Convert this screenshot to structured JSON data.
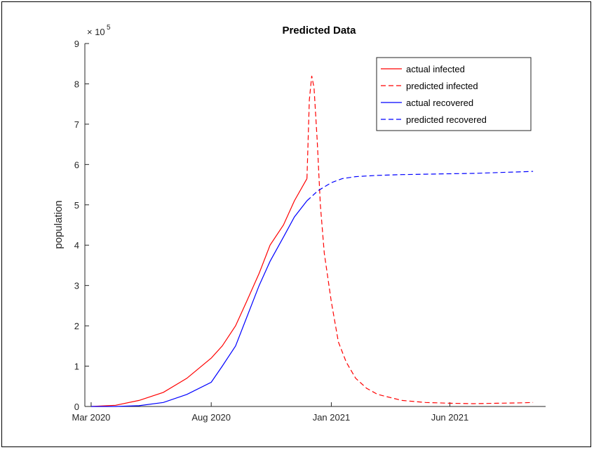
{
  "chart_data": {
    "type": "line",
    "title": "Predicted Data",
    "xlabel": "",
    "ylabel": "population",
    "y_exponent_label": "× 10",
    "y_exponent_power": "5",
    "ylim": [
      0,
      900000
    ],
    "y_ticks": [
      0,
      100000,
      200000,
      300000,
      400000,
      500000,
      600000,
      700000,
      800000,
      900000
    ],
    "y_tick_labels": [
      "0",
      "1",
      "2",
      "3",
      "4",
      "5",
      "6",
      "7",
      "8",
      "9"
    ],
    "xlim": [
      "2020-02-22",
      "2021-10-01"
    ],
    "x_ticks": [
      "2020-03-01",
      "2020-08-01",
      "2021-01-01",
      "2021-06-01"
    ],
    "x_tick_labels": [
      "Mar 2020",
      "Aug 2020",
      "Jan 2021",
      "Jun 2021"
    ],
    "legend_position": "top-right",
    "grid": false,
    "series": [
      {
        "name": "actual infected",
        "color": "#ff0000",
        "style": "solid",
        "x": [
          "2020-03-01",
          "2020-04-01",
          "2020-05-01",
          "2020-06-01",
          "2020-07-01",
          "2020-08-01",
          "2020-08-15",
          "2020-09-01",
          "2020-09-15",
          "2020-10-01",
          "2020-10-15",
          "2020-11-01",
          "2020-11-15",
          "2020-12-01"
        ],
        "y": [
          0,
          3000,
          15000,
          35000,
          70000,
          120000,
          150000,
          200000,
          260000,
          330000,
          400000,
          450000,
          510000,
          565000
        ]
      },
      {
        "name": "predicted infected",
        "color": "#ff0000",
        "style": "dashed",
        "x": [
          "2020-12-01",
          "2020-12-04",
          "2020-12-07",
          "2020-12-10",
          "2020-12-14",
          "2020-12-18",
          "2020-12-23",
          "2021-01-01",
          "2021-01-10",
          "2021-01-20",
          "2021-02-01",
          "2021-02-15",
          "2021-03-01",
          "2021-04-01",
          "2021-05-01",
          "2021-06-01",
          "2021-07-01",
          "2021-08-01",
          "2021-09-01",
          "2021-09-15"
        ],
        "y": [
          565000,
          760000,
          820000,
          790000,
          660000,
          500000,
          380000,
          260000,
          160000,
          110000,
          70000,
          45000,
          30000,
          15000,
          10000,
          8000,
          7000,
          8000,
          9000,
          10000
        ]
      },
      {
        "name": "actual recovered",
        "color": "#0000ff",
        "style": "solid",
        "x": [
          "2020-03-01",
          "2020-04-01",
          "2020-05-01",
          "2020-06-01",
          "2020-07-01",
          "2020-08-01",
          "2020-08-15",
          "2020-09-01",
          "2020-09-15",
          "2020-10-01",
          "2020-10-15",
          "2020-11-01",
          "2020-11-15",
          "2020-12-01"
        ],
        "y": [
          0,
          0,
          2000,
          10000,
          30000,
          60000,
          100000,
          150000,
          220000,
          300000,
          360000,
          420000,
          470000,
          510000
        ]
      },
      {
        "name": "predicted recovered",
        "color": "#0000ff",
        "style": "dashed",
        "x": [
          "2020-12-01",
          "2020-12-15",
          "2021-01-01",
          "2021-01-15",
          "2021-02-01",
          "2021-03-01",
          "2021-04-01",
          "2021-05-01",
          "2021-06-01",
          "2021-07-01",
          "2021-08-01",
          "2021-09-01",
          "2021-09-15"
        ],
        "y": [
          510000,
          535000,
          555000,
          565000,
          570000,
          573000,
          575000,
          576000,
          577000,
          578000,
          580000,
          582000,
          583000
        ]
      }
    ]
  }
}
